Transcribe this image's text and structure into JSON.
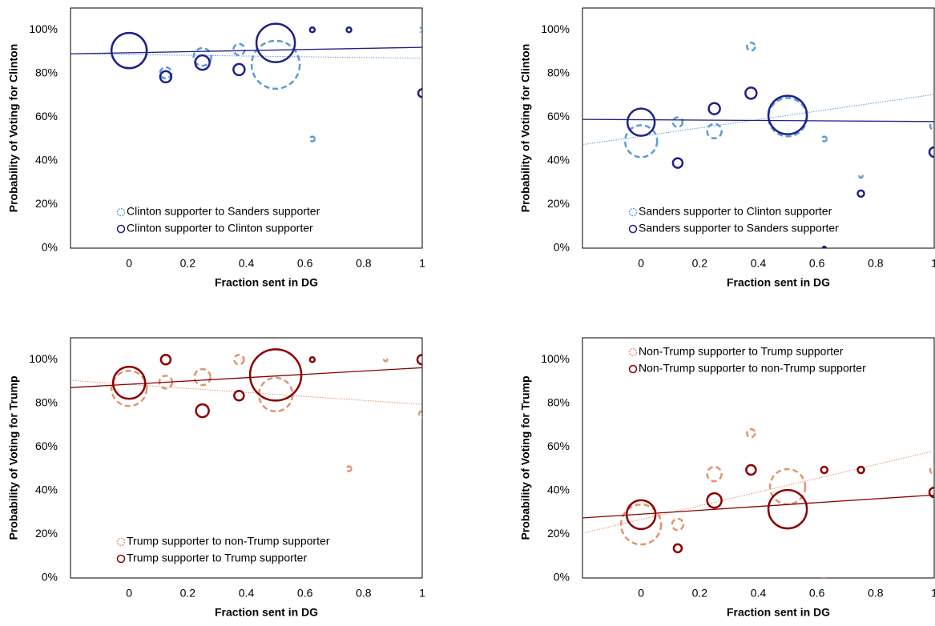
{
  "chart_data": [
    {
      "type": "bubble",
      "xlabel": "Fraction sent in DG",
      "ylabel": "Probability of Voting for Clinton",
      "xlim": [
        -0.2,
        1
      ],
      "xticks": [
        0,
        0.2,
        0.4,
        0.6,
        0.8,
        1
      ],
      "ylim": [
        0,
        110
      ],
      "yticks": [
        {
          "value": 0,
          "label": "0%"
        },
        {
          "value": 20,
          "label": "20%"
        },
        {
          "value": 40,
          "label": "40%"
        },
        {
          "value": 60,
          "label": "60%"
        },
        {
          "value": 80,
          "label": "80%"
        },
        {
          "value": 100,
          "label": "100%"
        }
      ],
      "legend": "lower left",
      "series": [
        {
          "name": "Clinton supporter to Sanders supporter",
          "color": "#5b9bd5",
          "line_style": "dashed",
          "trend_style": "dotted",
          "x": [
            0,
            0.125,
            0.25,
            0.375,
            0.5,
            0.625,
            1
          ],
          "values": [
            90.5,
            80.3,
            87.6,
            91,
            84,
            50,
            100
          ],
          "sizes": [
            22,
            7,
            11,
            7,
            30,
            3,
            3
          ],
          "trend_x": [
            -0.2,
            1
          ],
          "trend_y": [
            89,
            87
          ]
        },
        {
          "name": "Clinton supporter to Clinton supporter",
          "color": "#20208a",
          "line_style": "solid",
          "trend_style": "solid",
          "x": [
            0,
            0.125,
            0.25,
            0.375,
            0.5,
            0.625,
            0.75,
            1
          ],
          "values": [
            90.5,
            78.5,
            85,
            81.8,
            94,
            100,
            100,
            71
          ],
          "sizes": [
            22,
            7,
            9,
            7,
            24,
            3,
            3,
            5
          ],
          "trend_x": [
            -0.2,
            1
          ],
          "trend_y": [
            89,
            92
          ]
        }
      ]
    },
    {
      "type": "bubble",
      "xlabel": "Fraction sent in DG",
      "ylabel": "Probability of Voting for Clinton",
      "xlim": [
        -0.2,
        1
      ],
      "xticks": [
        0,
        0.2,
        0.4,
        0.6,
        0.8,
        1
      ],
      "ylim": [
        0,
        110
      ],
      "yticks": [
        {
          "value": 0,
          "label": "0%"
        },
        {
          "value": 20,
          "label": "20%"
        },
        {
          "value": 40,
          "label": "40%"
        },
        {
          "value": 60,
          "label": "60%"
        },
        {
          "value": 80,
          "label": "80%"
        },
        {
          "value": 100,
          "label": "100%"
        }
      ],
      "legend": "lower left",
      "series": [
        {
          "name": "Sanders supporter to Clinton supporter",
          "color": "#5b9bd5",
          "line_style": "dashed",
          "trend_style": "dotted",
          "x": [
            0,
            0.125,
            0.25,
            0.375,
            0.5,
            0.625,
            0.75,
            1
          ],
          "values": [
            49,
            57.7,
            53.6,
            92.3,
            60,
            50,
            33,
            56
          ],
          "sizes": [
            20,
            6,
            9,
            5,
            24,
            3,
            2,
            5
          ],
          "trend_x": [
            -0.2,
            1
          ],
          "trend_y": [
            47.4,
            70.4
          ]
        },
        {
          "name": "Sanders supporter to Sanders supporter",
          "color": "#20208a",
          "line_style": "solid",
          "trend_style": "solid",
          "x": [
            0,
            0.125,
            0.25,
            0.375,
            0.5,
            0.625,
            0.75,
            1
          ],
          "values": [
            57.7,
            39,
            63.9,
            71,
            61,
            0,
            25,
            44
          ],
          "sizes": [
            17,
            6,
            7,
            7,
            24,
            2,
            4,
            6
          ],
          "trend_x": [
            -0.2,
            1
          ],
          "trend_y": [
            59,
            58
          ]
        }
      ]
    },
    {
      "type": "bubble",
      "xlabel": "Fraction sent in DG",
      "ylabel": "Probability of Voting for Trump",
      "xlim": [
        -0.2,
        1
      ],
      "xticks": [
        0,
        0.2,
        0.4,
        0.6,
        0.8,
        1
      ],
      "ylim": [
        0,
        110
      ],
      "yticks": [
        {
          "value": 0,
          "label": "0%"
        },
        {
          "value": 20,
          "label": "20%"
        },
        {
          "value": 40,
          "label": "40%"
        },
        {
          "value": 60,
          "label": "60%"
        },
        {
          "value": 80,
          "label": "80%"
        },
        {
          "value": 100,
          "label": "100%"
        }
      ],
      "legend": "lower left",
      "series": [
        {
          "name": "Trump supporter to non-Trump supporter",
          "color": "#e0956f",
          "line_style": "dashed",
          "trend_style": "dotted",
          "x": [
            0,
            0.125,
            0.25,
            0.375,
            0.5,
            0.75,
            0.875,
            1
          ],
          "values": [
            86.8,
            89.7,
            92,
            100,
            84,
            50,
            100,
            75
          ],
          "sizes": [
            22,
            8,
            10,
            6,
            21,
            3,
            2,
            4
          ],
          "trend_x": [
            -0.2,
            1
          ],
          "trend_y": [
            90.5,
            79.5
          ]
        },
        {
          "name": "Trump supporter to Trump supporter",
          "color": "#8b0000",
          "line_style": "solid",
          "trend_style": "solid",
          "x": [
            0,
            0.125,
            0.25,
            0.375,
            0.5,
            0.625,
            1
          ],
          "values": [
            89.4,
            100,
            76.6,
            83.5,
            93,
            100,
            100
          ],
          "sizes": [
            20,
            6,
            8,
            6,
            32,
            3,
            6
          ],
          "trend_x": [
            -0.2,
            1
          ],
          "trend_y": [
            87.2,
            96.3
          ]
        }
      ]
    },
    {
      "type": "bubble",
      "xlabel": "Fraction sent in DG",
      "ylabel": "Probability of Voting for Trump",
      "xlim": [
        -0.2,
        1
      ],
      "xticks": [
        0,
        0.2,
        0.4,
        0.6,
        0.8,
        1
      ],
      "ylim": [
        0,
        110
      ],
      "yticks": [
        {
          "value": 0,
          "label": "0%"
        },
        {
          "value": 20,
          "label": "20%"
        },
        {
          "value": 40,
          "label": "40%"
        },
        {
          "value": 60,
          "label": "60%"
        },
        {
          "value": 80,
          "label": "80%"
        },
        {
          "value": 100,
          "label": "100%"
        }
      ],
      "legend": "upper left",
      "series": [
        {
          "name": "Non-Trump supporter to Trump supporter",
          "color": "#e0956f",
          "line_style": "dashed",
          "trend_style": "dotted",
          "x": [
            0,
            0.125,
            0.25,
            0.375,
            0.5,
            0.625,
            0.75,
            1
          ],
          "values": [
            24.5,
            24.5,
            47.6,
            66.3,
            41.8,
            0,
            49.5,
            49.5
          ],
          "sizes": [
            25,
            7,
            9,
            5,
            22,
            2,
            4,
            5
          ],
          "trend_x": [
            -0.2,
            1
          ],
          "trend_y": [
            20.5,
            58.2
          ]
        },
        {
          "name": "Non-Trump supporter to non-Trump supporter",
          "color": "#8b0000",
          "line_style": "solid",
          "trend_style": "solid",
          "x": [
            0,
            0.125,
            0.25,
            0.375,
            0.5,
            0.625,
            0.75,
            1
          ],
          "values": [
            29,
            13.6,
            35.5,
            49.5,
            31.5,
            49.5,
            49.5,
            39.2
          ],
          "sizes": [
            18,
            5,
            9,
            6,
            24,
            4,
            4,
            6
          ],
          "trend_x": [
            -0.2,
            1
          ],
          "trend_y": [
            27.5,
            38
          ]
        }
      ]
    }
  ]
}
